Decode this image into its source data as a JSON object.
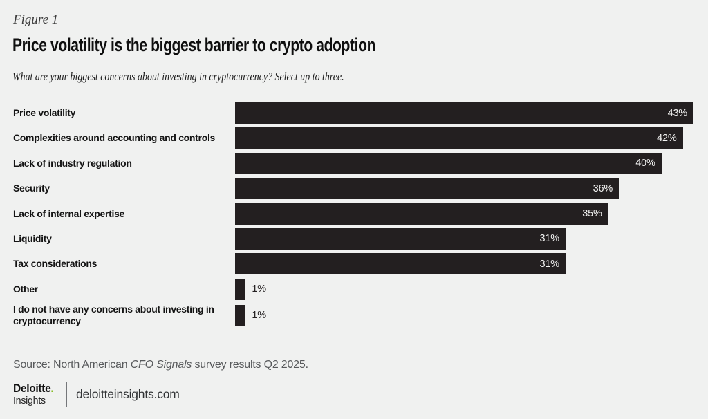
{
  "figure_label": "Figure 1",
  "title": "Price volatility is the biggest barrier to crypto adoption",
  "subtitle": "What are your biggest concerns about investing in cryptocurrency? Select up to three.",
  "chart_data": {
    "type": "bar",
    "orientation": "horizontal",
    "title": "Price volatility is the biggest barrier to crypto adoption",
    "question": "What are your biggest concerns about investing in cryptocurrency? Select up to three.",
    "categories": [
      "Price volatility",
      "Complexities around accounting and controls",
      "Lack of industry regulation",
      "Security",
      "Lack of internal expertise",
      "Liquidity",
      "Tax considerations",
      "Other",
      "I do not have any concerns about investing in cryptocurrency"
    ],
    "values": [
      43,
      42,
      40,
      36,
      35,
      31,
      31,
      1,
      1
    ],
    "value_labels": [
      "43%",
      "42%",
      "40%",
      "36%",
      "35%",
      "31%",
      "31%",
      "1%",
      "1%"
    ],
    "unit": "%",
    "xlim": [
      0,
      43
    ],
    "grid": false,
    "legend": false,
    "inside_label_min": 5,
    "bar_color": "#231f20",
    "inside_label_color": "#f2f2f1",
    "outside_label_color": "#231f20"
  },
  "source": {
    "prefix": "Source: North American ",
    "italic": "CFO Signals",
    "suffix": " survey results Q2 2025."
  },
  "footer": {
    "brand": "Deloitte",
    "brand_dot": ".",
    "brand_sub": "Insights",
    "site": "deloitteinsights.com"
  },
  "colors": {
    "background": "#f0f1f0",
    "bar": "#231f20",
    "accent_green": "#86bc25",
    "source_text": "#57595b",
    "title_text": "#0f0f0f"
  }
}
